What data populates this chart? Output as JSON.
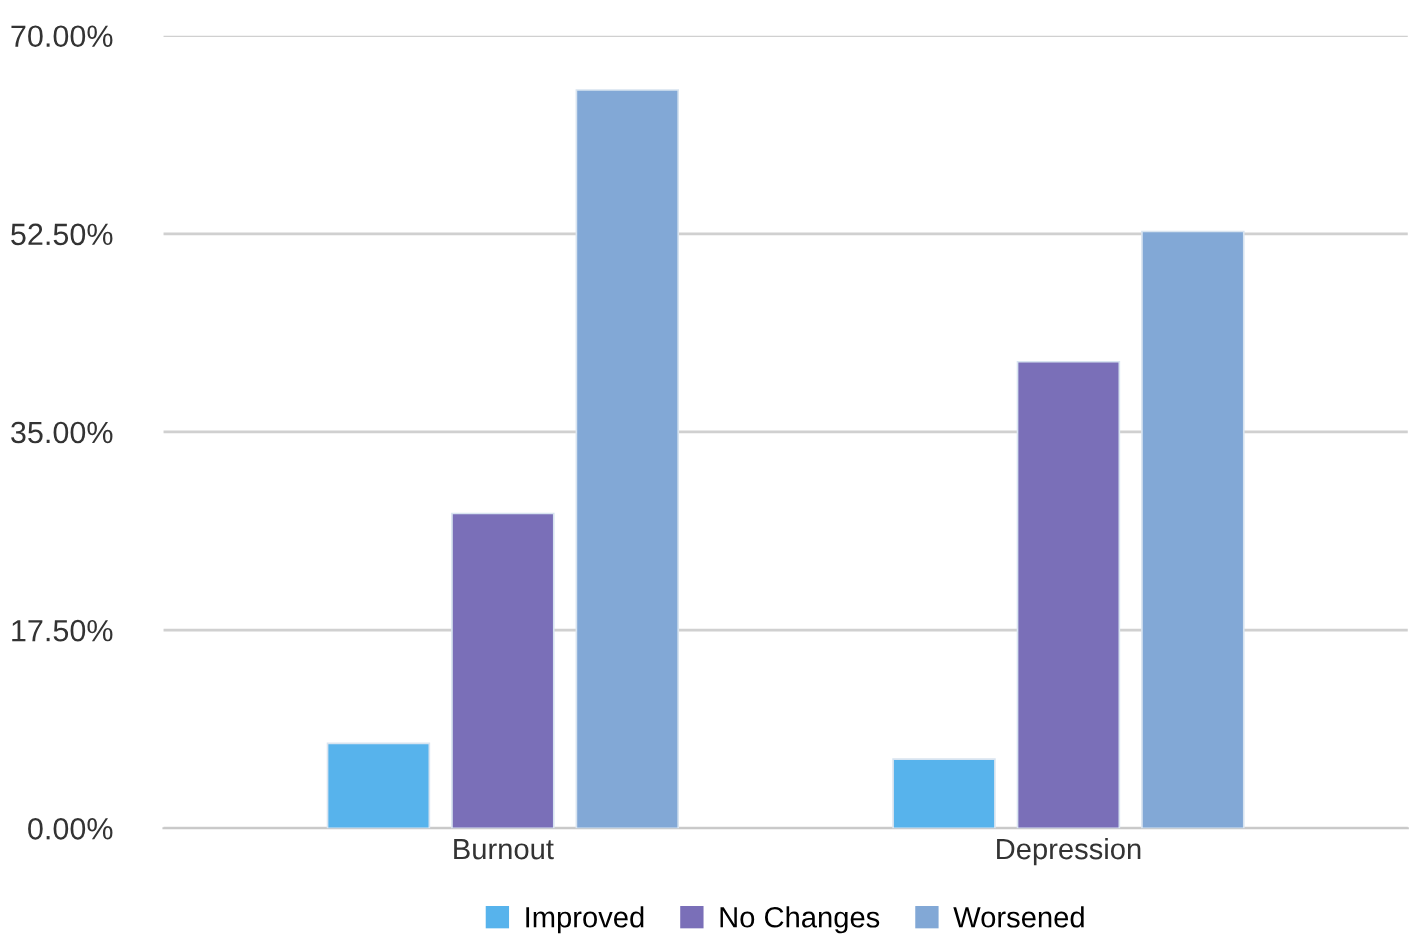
{
  "chart_data": {
    "type": "bar",
    "categories": [
      "Burnout",
      "Depression"
    ],
    "series": [
      {
        "name": "Improved",
        "color": "#57b3ec",
        "values": [
          7.5,
          6.1
        ]
      },
      {
        "name": "No Changes",
        "color": "#7a6fb8",
        "values": [
          27.8,
          41.2
        ]
      },
      {
        "name": "Worsened",
        "color": "#82a8d6",
        "values": [
          65.2,
          52.7
        ]
      }
    ],
    "ylim": [
      0,
      70
    ],
    "yticks": [
      {
        "value": 0,
        "label": "0.00%"
      },
      {
        "value": 17.5,
        "label": "17.50%"
      },
      {
        "value": 35,
        "label": "35.00%"
      },
      {
        "value": 52.5,
        "label": "52.50%"
      },
      {
        "value": 70,
        "label": "70.00%"
      }
    ],
    "grid": "y",
    "legend": "bottom"
  }
}
